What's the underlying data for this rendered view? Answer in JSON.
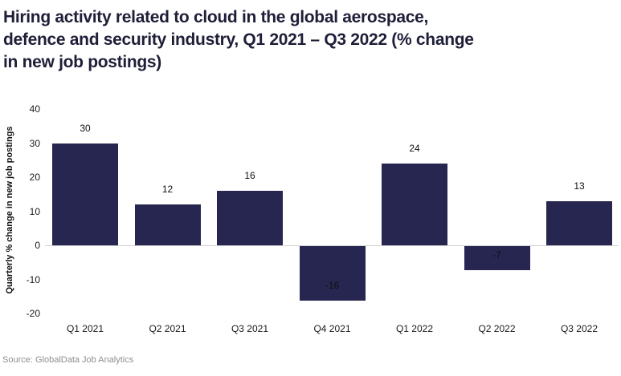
{
  "title": {
    "lines": [
      "Hiring activity related to cloud in the global aerospace,",
      "defence and security industry, Q1 2021 – Q3 2022 (% change",
      "in new job postings)"
    ]
  },
  "chart_data": {
    "type": "bar",
    "title": "Hiring activity related to cloud in the global aerospace, defence and security industry, Q1 2021 – Q3 2022 (% change in new job postings)",
    "categories": [
      "Q1 2021",
      "Q2 2021",
      "Q3 2021",
      "Q4 2021",
      "Q1 2022",
      "Q2 2022",
      "Q3 2022"
    ],
    "values": [
      30,
      12,
      16,
      -16,
      24,
      -7,
      13
    ],
    "xlabel": "",
    "ylabel": "Quarterly % change in new job postings",
    "ylim": [
      -20,
      40
    ],
    "yticks": [
      40,
      30,
      20,
      10,
      0,
      -10,
      -20
    ],
    "grid": false,
    "legend": "none",
    "bar_color": "#272650",
    "value_label_color": "#111111",
    "zero_line_color": "#cfcfcf"
  },
  "source": {
    "text": "Source: GlobalData Job Analytics"
  }
}
